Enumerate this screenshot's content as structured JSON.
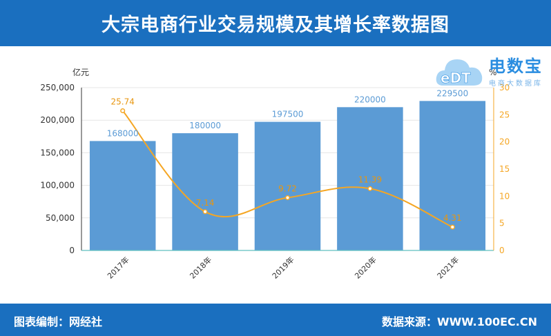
{
  "header": {
    "title": "大宗电商行业交易规模及其增长率数据图"
  },
  "footer": {
    "left": "图表编制：网经社",
    "right": "数据来源：WWW.100EC.CN"
  },
  "logo": {
    "name": "电数宝",
    "mark": "eDT",
    "sub": "电商大数据库",
    "color": "#2a8de0"
  },
  "chart_data": {
    "type": "bar",
    "categories": [
      "2017年",
      "2018年",
      "2019年",
      "2020年",
      "2021年"
    ],
    "series": [
      {
        "name": "",
        "type": "bar",
        "axis": "left",
        "values": [
          168000,
          180000,
          197500,
          220000,
          229500
        ],
        "labels": [
          "168000",
          "180000",
          "197500",
          "220000",
          "229500"
        ],
        "color": "#5b9bd5"
      },
      {
        "name": "",
        "type": "line",
        "axis": "right",
        "values": [
          25.74,
          7.14,
          9.72,
          11.39,
          4.31
        ],
        "labels": [
          "25.74",
          "7.14",
          "9.72",
          "11.39",
          "4.31"
        ],
        "color": "#f5a623"
      }
    ],
    "ylabel_left": "亿元",
    "ylabel_right": "%",
    "ylim_left": [
      0,
      250000
    ],
    "ylim_right": [
      0,
      30
    ],
    "yticks_left": [
      "0",
      "50,000",
      "100,000",
      "150,000",
      "200,000",
      "250,000"
    ],
    "yticks_right": [
      "0",
      "5",
      "10",
      "15",
      "20",
      "25",
      "30"
    ],
    "grid": true
  }
}
